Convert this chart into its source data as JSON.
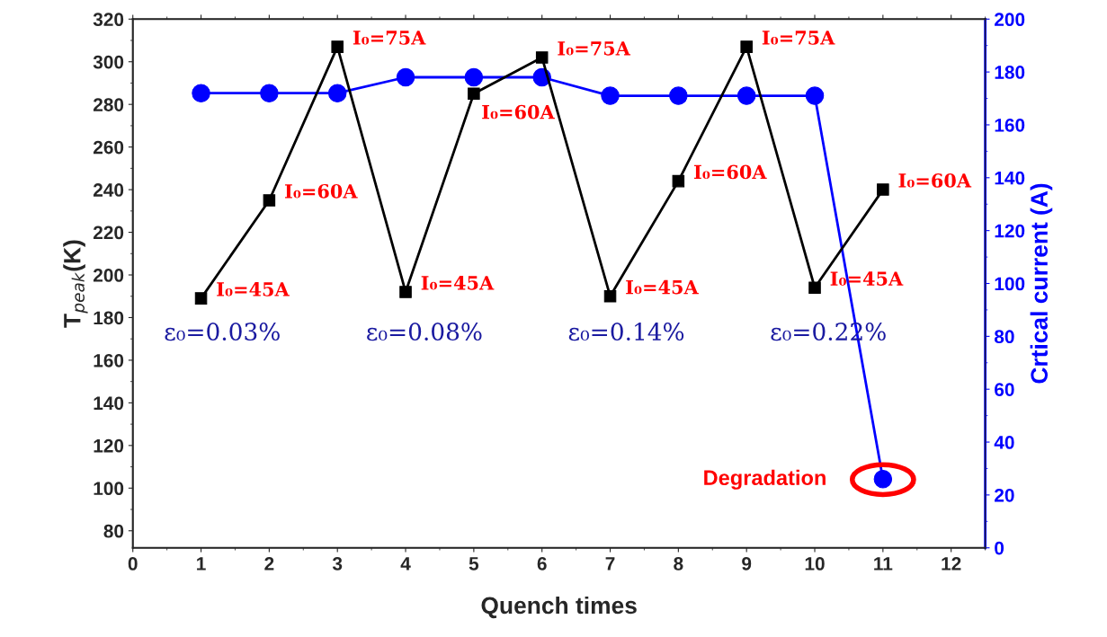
{
  "chart_data": {
    "type": "line",
    "xlabel": "Quench times",
    "ylabel": "T$_{peak}$(K)",
    "y2label": "Crtical current (A)",
    "x": [
      1,
      2,
      3,
      4,
      5,
      6,
      7,
      8,
      9,
      10,
      11
    ],
    "series": [
      {
        "color": "#000000",
        "marker": "square",
        "values": [
          189,
          235,
          307,
          192,
          285,
          302,
          190,
          244,
          307,
          194,
          240
        ]
      },
      {
        "color": "#0000ff",
        "marker": "circle",
        "axis": "y2",
        "values": [
          172,
          172,
          172,
          178,
          178,
          178,
          171,
          171,
          171,
          171,
          26
        ]
      }
    ],
    "xlim": [
      0,
      12.5
    ],
    "xticks": [
      0,
      1,
      2,
      3,
      4,
      5,
      6,
      7,
      8,
      9,
      10,
      11,
      12
    ],
    "ylim": [
      72,
      320
    ],
    "yticks": [
      80,
      100,
      120,
      140,
      160,
      180,
      200,
      220,
      240,
      260,
      280,
      300,
      320
    ],
    "y2lim": [
      0,
      200
    ],
    "y2ticks": [
      0,
      20,
      40,
      60,
      80,
      100,
      120,
      140,
      160,
      180,
      200
    ],
    "grid": false,
    "legend": false,
    "line_style": "solid",
    "annotations": [
      {
        "text": "I₀=45A",
        "x": 1,
        "y": 189
      },
      {
        "text": "I₀=60A",
        "x": 2,
        "y": 235
      },
      {
        "text": "I₀=75A",
        "x": 3,
        "y": 307
      },
      {
        "text": "I₀=45A",
        "x": 4,
        "y": 192
      },
      {
        "text": "I₀=60A",
        "x": 5,
        "y": 285
      },
      {
        "text": "I₀=75A",
        "x": 6,
        "y": 302
      },
      {
        "text": "I₀=45A",
        "x": 7,
        "y": 190
      },
      {
        "text": "I₀=60A",
        "x": 8,
        "y": 244
      },
      {
        "text": "I₀=75A",
        "x": 9,
        "y": 307
      },
      {
        "text": "I₀=45A",
        "x": 10,
        "y": 194
      },
      {
        "text": "I₀=60A",
        "x": 11,
        "y": 240
      },
      "ε₀=0.03%",
      "ε₀=0.08%",
      "ε₀=0.14%",
      "ε₀=0.22%",
      {
        "text": "Degradation",
        "x": 11,
        "y": 104
      }
    ]
  }
}
